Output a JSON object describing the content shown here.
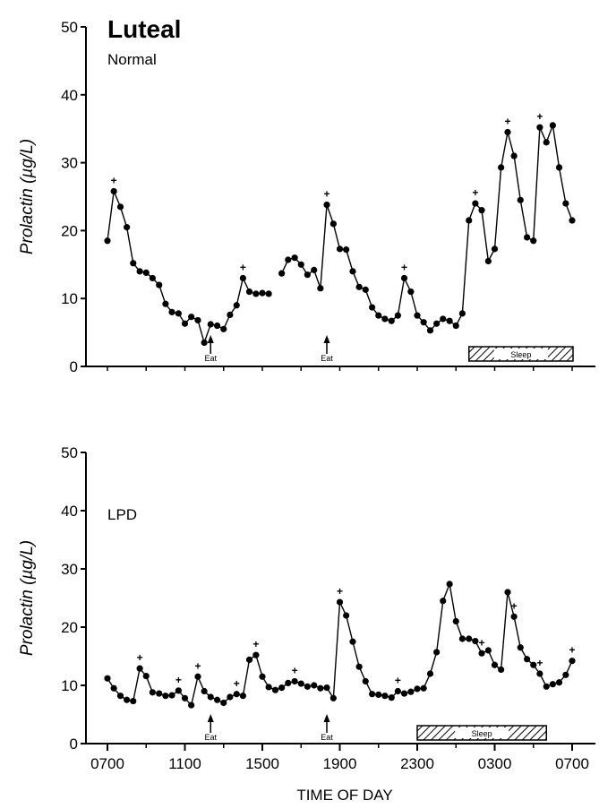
{
  "chart_data": [
    {
      "type": "line",
      "title": "Luteal",
      "subtitle": "Normal",
      "ylabel": "Prolactin (µg/L)",
      "ylim": [
        0,
        50
      ],
      "yticks": [
        0,
        10,
        20,
        30,
        40,
        50
      ],
      "x_unit": "hours after 0700",
      "xlim": [
        0,
        24
      ],
      "series": [
        {
          "segments": [
            {
              "x": [
                0,
                0.33,
                0.67,
                1.0,
                1.33,
                1.67,
                2.0,
                2.33,
                2.67,
                3.0,
                3.33,
                3.67,
                4.0,
                4.33,
                4.67,
                5.0,
                5.33,
                5.67,
                6.0,
                6.33,
                6.67,
                7.0,
                7.33,
                7.67,
                8.0,
                8.33
              ],
              "y": [
                18.5,
                25.8,
                23.5,
                20.5,
                15.2,
                14.0,
                13.8,
                13.0,
                12.0,
                9.2,
                8.0,
                7.8,
                6.3,
                7.3,
                6.8,
                3.5,
                6.2,
                6.0,
                5.5,
                7.6,
                9.0,
                13.0,
                11.0,
                10.7,
                10.8,
                10.7
              ]
            },
            {
              "x": [
                9.0,
                9.33,
                9.67,
                10.0,
                10.33,
                10.67,
                11.0,
                11.33,
                11.67,
                12.0,
                12.33,
                12.67,
                13.0,
                13.33,
                13.67,
                14.0,
                14.33,
                14.67,
                15.0,
                15.33,
                15.67,
                16.0,
                16.33,
                16.67,
                17.0,
                17.33,
                17.67,
                18.0,
                18.33,
                18.67,
                19.0,
                19.33,
                19.67,
                20.0,
                20.33,
                20.67,
                21.0,
                21.33,
                21.67,
                22.0,
                22.33,
                22.67,
                23.0,
                23.33,
                23.67,
                24.0
              ],
              "y": [
                13.7,
                15.7,
                16.0,
                15.0,
                13.5,
                14.2,
                11.5,
                23.8,
                21.0,
                17.3,
                17.2,
                14.0,
                11.7,
                11.3,
                8.7,
                7.5,
                7.0,
                6.7,
                7.5,
                13.0,
                11.0,
                7.5,
                6.5,
                5.3,
                6.3,
                7.0,
                6.7,
                6.0,
                7.8,
                21.5,
                24.0,
                23.0,
                15.5,
                17.3,
                29.3,
                34.5,
                31.0,
                24.5,
                19.0,
                18.5,
                35.2,
                33.0,
                35.5,
                29.3,
                24.0,
                21.5
              ]
            }
          ]
        }
      ],
      "peaks_x": [
        0.33,
        7.0,
        11.33,
        15.33,
        19.0,
        20.67,
        22.33
      ],
      "annotations": [
        {
          "text": "Eat",
          "x": 5.33
        },
        {
          "text": "Eat",
          "x": 11.33
        }
      ],
      "sleep_band": {
        "label": "Sleep",
        "x_start": 18.67,
        "x_end": 24.7
      }
    },
    {
      "type": "line",
      "title": "LPD",
      "ylabel": "Prolactin (µg/L)",
      "xlabel": "TIME OF DAY",
      "ylim": [
        0,
        50
      ],
      "yticks": [
        0,
        10,
        20,
        30,
        40,
        50
      ],
      "x_unit": "hours after 0700",
      "xlim": [
        0,
        24
      ],
      "xtick_labels": [
        "0700",
        "1100",
        "1500",
        "1900",
        "2300",
        "0300",
        "0700"
      ],
      "series": [
        {
          "segments": [
            {
              "x": [
                0,
                0.33,
                0.67,
                1.0,
                1.33,
                1.67,
                2.0,
                2.33,
                2.67,
                3.0,
                3.33,
                3.67,
                4.0,
                4.33,
                4.67,
                5.0,
                5.33,
                5.67,
                6.0,
                6.33,
                6.67,
                7.0,
                7.33,
                7.67,
                8.0,
                8.33,
                8.67,
                9.0,
                9.33,
                9.67,
                10.0,
                10.33,
                10.67,
                11.0,
                11.33,
                11.67,
                12.0,
                12.33,
                12.67,
                13.0,
                13.33,
                13.67,
                14.0,
                14.33,
                14.67,
                15.0,
                15.33,
                15.67,
                16.0,
                16.33,
                16.67,
                17.0,
                17.33,
                17.67,
                18.0,
                18.33,
                18.67,
                19.0,
                19.33,
                19.67,
                20.0,
                20.33,
                20.67,
                21.0,
                21.33,
                21.67,
                22.0,
                22.33,
                22.67,
                23.0,
                23.33,
                23.67,
                24.0
              ],
              "y": [
                11.2,
                9.5,
                8.2,
                7.5,
                7.3,
                12.9,
                11.6,
                8.8,
                8.6,
                8.2,
                8.3,
                9.1,
                7.8,
                6.6,
                11.5,
                9.0,
                8.0,
                7.5,
                7.0,
                8.0,
                8.5,
                8.2,
                14.4,
                15.2,
                11.5,
                9.7,
                9.2,
                9.6,
                10.4,
                10.7,
                10.3,
                9.8,
                10.0,
                9.5,
                9.6,
                7.8,
                24.3,
                22.0,
                17.5,
                13.2,
                10.7,
                8.5,
                8.4,
                8.2,
                7.9,
                9.0,
                8.6,
                8.9,
                9.4,
                9.5,
                12.0,
                15.7,
                24.5,
                27.4,
                21.0,
                18.0,
                18.0,
                17.6,
                15.5,
                16.0,
                13.5,
                12.7,
                26.0,
                21.8,
                16.5,
                14.5,
                13.5,
                12.0,
                9.8,
                10.2,
                10.5,
                11.8,
                14.2
              ]
            }
          ]
        }
      ],
      "peaks_x": [
        1.67,
        3.67,
        4.67,
        6.67,
        7.67,
        9.67,
        12.0,
        15.0,
        19.33,
        21.0,
        22.33,
        24.0
      ],
      "annotations": [
        {
          "text": "Eat",
          "x": 5.33
        },
        {
          "text": "Eat",
          "x": 11.33
        }
      ],
      "sleep_band": {
        "label": "Sleep",
        "x_start": 16.0,
        "x_end": 22.67
      }
    }
  ]
}
